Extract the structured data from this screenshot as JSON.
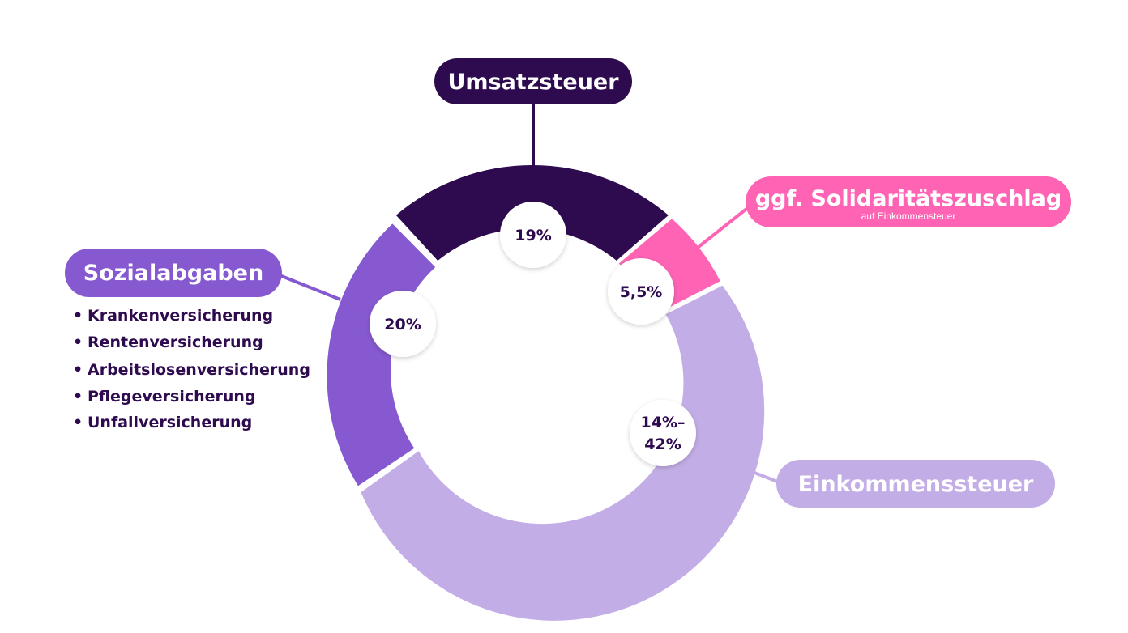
{
  "segments": [
    {
      "key": "umsatzsteuer",
      "label": "Umsatzsteuer",
      "percent_lines": [
        "19%"
      ],
      "color": "#2e0a4f"
    },
    {
      "key": "solidaritaetszuschlag",
      "label": "ggf. Solidaritätszuschlag",
      "sublabel": "auf Einkommensteuer",
      "percent_lines": [
        "5,5%"
      ],
      "color": "#ff64b4"
    },
    {
      "key": "einkommenssteuer",
      "label": "Einkommenssteuer",
      "percent_lines": [
        "14%–",
        "42%"
      ],
      "color": "#c3ade6"
    },
    {
      "key": "sozialabgaben",
      "label": "Sozialabgaben",
      "percent_lines": [
        "20%"
      ],
      "color": "#8659d0"
    }
  ],
  "sozialabgaben_list": [
    "Krankenversicherung",
    "Rentenversicherung",
    "Arbeitslosenversicherung",
    "Pflegeversicherung",
    "Unfallversicherung"
  ],
  "bullet": "•",
  "colors": {
    "text_dark": "#2e0a4f",
    "badge_bg": "#ffffff"
  }
}
